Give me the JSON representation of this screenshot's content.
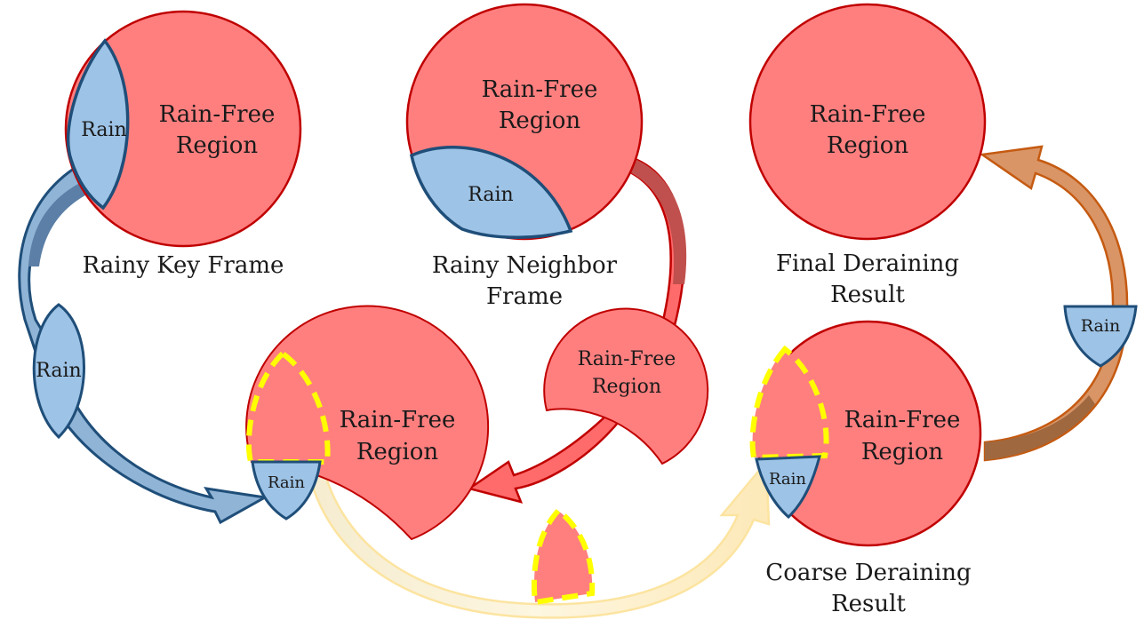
{
  "colors": {
    "rain_free_fill": "#ff7f7f",
    "rain_free_stroke": "#c00000",
    "rain_fill": "#9dc3e6",
    "rain_stroke": "#1f4e79",
    "highlight_dash": "#ffff00",
    "orange_arrow": "#c55a11",
    "yellow_arrow": "#fce4b0"
  },
  "key_frame": {
    "rain": "Rain",
    "rain_free_line1": "Rain-Free",
    "rain_free_line2": "Region",
    "caption": "Rainy Key Frame"
  },
  "neighbor_frame": {
    "rain": "Rain",
    "rain_free_line1": "Rain-Free",
    "rain_free_line2": "Region",
    "caption_line1": "Rainy Neighbor",
    "caption_line2": "Frame"
  },
  "final_result": {
    "rain_free_line1": "Rain-Free",
    "rain_free_line2": "Region",
    "caption_line1": "Final Deraining",
    "caption_line2": "Result"
  },
  "moving_rain_left": "Rain",
  "moving_rain_right": "Rain",
  "warped_neighbor": {
    "line1": "Rain-Free",
    "line2": "Region"
  },
  "combined_left": {
    "rain": "Rain",
    "rain_free_line1": "Rain-Free",
    "rain_free_line2": "Region"
  },
  "coarse_result": {
    "rain": "Rain",
    "rain_free_line1": "Rain-Free",
    "rain_free_line2": "Region",
    "caption_line1": "Coarse Deraining",
    "caption_line2": "Result"
  }
}
